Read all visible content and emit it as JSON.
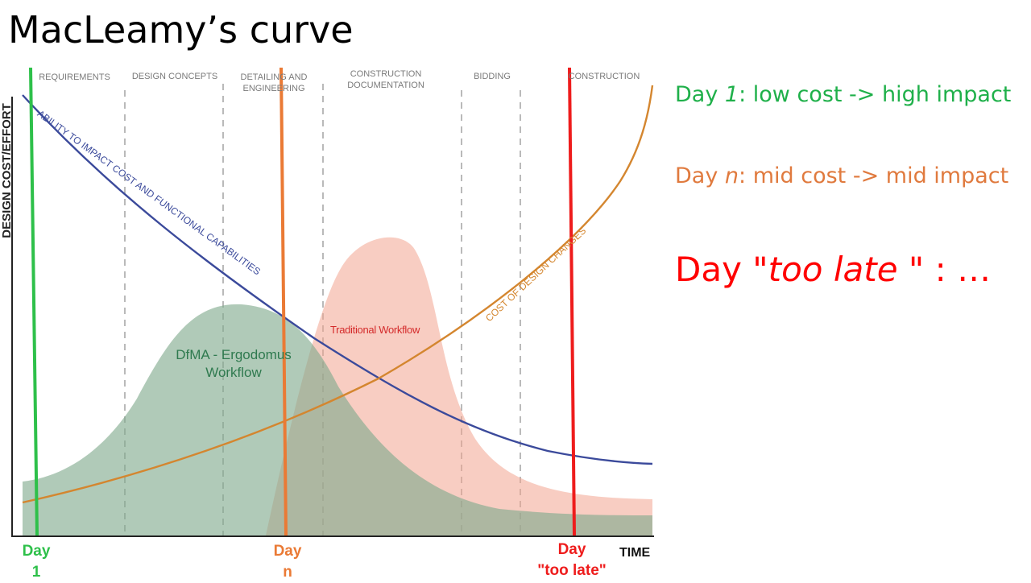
{
  "title": "MacLeamy’s curve",
  "figure": {
    "phases": [
      "REQUIREMENTS",
      "DESIGN CONCEPTS",
      "DETAILING AND ENGINEERING",
      "CONSTRUCTION DOCUMENTATION",
      "BIDDING",
      "CONSTRUCTION"
    ],
    "y_axis_label": "DESIGN COST/EFFORT",
    "x_axis_label": "TIME",
    "ability_curve_label": "ABILITY TO IMPACT COST AND FUNCTIONAL CAPABILITIES",
    "cost_curve_label": "COST OF DESIGN CHANGES",
    "dfma_label_line1": "DfMA - Ergodomus",
    "dfma_label_line2": "Workflow",
    "traditional_label": "Traditional Workflow",
    "colors": {
      "ability_curve": "#3b4a9b",
      "cost_curve": "#d4862f",
      "dfma_area": "#7fa98d",
      "traditional_area": "#f2a48f",
      "phase_divider": "#a8a8a8"
    }
  },
  "markers": [
    {
      "id": "day-1",
      "line1": "Day",
      "line2": "1",
      "color": "#2ec04a"
    },
    {
      "id": "day-n",
      "line1": "Day",
      "line2": "n",
      "color": "#ea7a35"
    },
    {
      "id": "day-too-late",
      "line1": "Day",
      "line2": "\"too late\"",
      "color": "#ee1c1c"
    }
  ],
  "notes": [
    {
      "prefix": "Day ",
      "italic": "1",
      "suffix": ": low cost -> high impact",
      "color": "#1fb04a"
    },
    {
      "prefix": "Day ",
      "italic": "n",
      "suffix": ": mid cost -> mid impact",
      "color": "#e07a3e"
    },
    {
      "prefix": "Day ",
      "italic": "\"too late \"",
      "suffix": " : …",
      "color": "#ff0000"
    }
  ]
}
